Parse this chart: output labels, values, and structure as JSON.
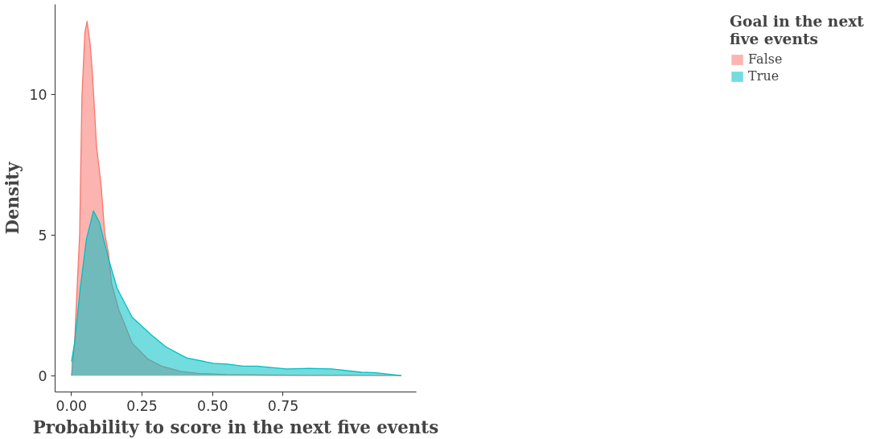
{
  "chart_data": {
    "type": "area",
    "xlabel": "Probability to score in the next five events",
    "ylabel": "Density",
    "legend_title": "Goal in the next five events",
    "legend": "right",
    "grid": false,
    "xlim": [
      -0.058,
      1.222
    ],
    "ylim": [
      -0.58,
      13.2
    ],
    "xticks": [
      {
        "value": 0,
        "label": "0.00"
      },
      {
        "value": 0.25,
        "label": "0.25"
      },
      {
        "value": 0.5,
        "label": "0.50"
      },
      {
        "value": 0.75,
        "label": "0.75"
      }
    ],
    "yticks": [
      0,
      5,
      10
    ],
    "series": [
      {
        "name": "False",
        "color": "#f8766d",
        "x": [
          0,
          0.011,
          0.029,
          0.037,
          0.0475,
          0.0554,
          0.066,
          0.0737,
          0.089,
          0.105,
          0.118,
          0.131,
          0.142,
          0.168,
          0.188,
          0.215,
          0.272,
          0.319,
          0.387,
          0.45,
          0.55,
          0.687,
          0.85,
          1.0,
          1.169
        ],
        "values": [
          0,
          1.16,
          5.04,
          9.9,
          12.2,
          12.6,
          11.8,
          10.85,
          8.14,
          6.78,
          5.04,
          4.36,
          3.29,
          2.33,
          1.84,
          1.16,
          0.58,
          0.34,
          0.15,
          0.08,
          0.04,
          0.02,
          0.01,
          0.01,
          0
        ]
      },
      {
        "name": "True",
        "color": "#00bfc4",
        "x": [
          0,
          0.011,
          0.031,
          0.053,
          0.078,
          0.1,
          0.131,
          0.162,
          0.215,
          0.283,
          0.335,
          0.408,
          0.502,
          0.554,
          0.607,
          0.658,
          0.687,
          0.763,
          0.842,
          0.923,
          1.028,
          1.08,
          1.169
        ],
        "values": [
          0.5,
          1.16,
          3.1,
          4.85,
          5.86,
          5.43,
          4.17,
          3.1,
          2.08,
          1.45,
          1.02,
          0.63,
          0.44,
          0.41,
          0.34,
          0.34,
          0.31,
          0.24,
          0.26,
          0.24,
          0.12,
          0.1,
          0
        ]
      }
    ]
  }
}
